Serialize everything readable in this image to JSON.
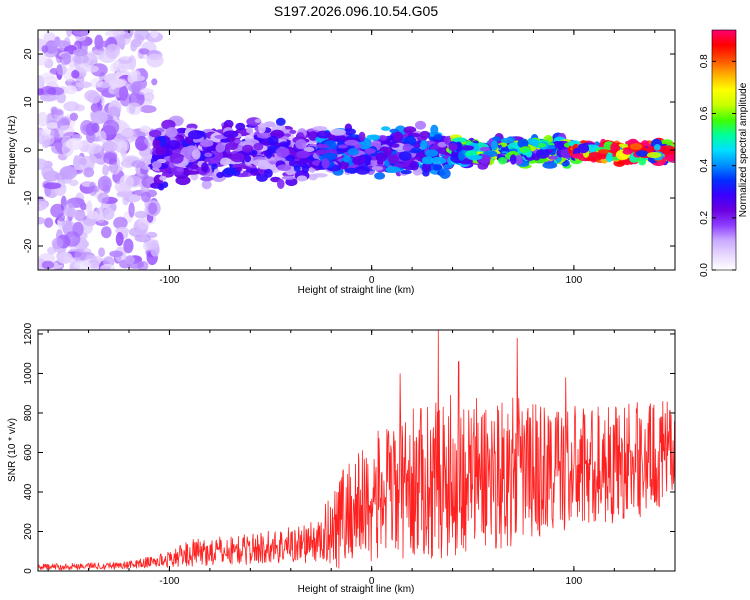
{
  "title": "S197.2026.096.10.54.G05",
  "chart_data": [
    {
      "type": "heatmap",
      "name": "spectrogram",
      "xlabel": "Height of straight line (km)",
      "ylabel": "Frequency (Hz)",
      "xlim": [
        -165,
        150
      ],
      "ylim": [
        -25,
        25
      ],
      "xticks": [
        -100,
        0,
        100
      ],
      "yticks": [
        -20,
        -10,
        0,
        10,
        20
      ],
      "colorbar": {
        "label": "Normalized spectral amplitude",
        "range": [
          0.0,
          0.92
        ],
        "ticks": [
          0.0,
          0.2,
          0.4,
          0.6,
          0.8
        ],
        "colors": [
          "#ffffff",
          "#e8d8ff",
          "#c9a8ff",
          "#8c3cff",
          "#6a00e0",
          "#3a00ff",
          "#0030ff",
          "#0090ff",
          "#00e0ff",
          "#00ff9a",
          "#40ff00",
          "#c8ff00",
          "#ffff00",
          "#ffb000",
          "#ff5000",
          "#ff0000",
          "#ff0070"
        ]
      },
      "regions": [
        {
          "x": [
            -165,
            -107
          ],
          "f": [
            -25,
            25
          ],
          "amp": 0.12,
          "desc": "noise"
        },
        {
          "x": [
            -107,
            -25
          ],
          "f": [
            -7,
            6
          ],
          "amp": 0.22
        },
        {
          "x": [
            -25,
            40
          ],
          "f": [
            -5,
            4
          ],
          "amp": 0.3
        },
        {
          "x": [
            40,
            100
          ],
          "f": [
            -3,
            2.5
          ],
          "amp": 0.45
        },
        {
          "x": [
            100,
            150
          ],
          "f": [
            -2.5,
            1.5
          ],
          "amp": 0.75
        }
      ]
    },
    {
      "type": "line",
      "name": "snr",
      "xlabel": "Height of straight line (km)",
      "ylabel": "SNR (10 * v/v)",
      "xlim": [
        -165,
        150
      ],
      "ylim": [
        0,
        1220
      ],
      "xticks": [
        -100,
        0,
        100
      ],
      "yticks": [
        0,
        200,
        400,
        600,
        800,
        1000,
        1200
      ],
      "color": "#ff2020",
      "envelope": [
        {
          "x": -165,
          "base": 20,
          "spread": 15
        },
        {
          "x": -120,
          "base": 30,
          "spread": 20
        },
        {
          "x": -100,
          "base": 60,
          "spread": 40
        },
        {
          "x": -90,
          "base": 90,
          "spread": 70
        },
        {
          "x": -60,
          "base": 110,
          "spread": 80
        },
        {
          "x": -25,
          "base": 150,
          "spread": 110
        },
        {
          "x": -18,
          "base": 260,
          "spread": 250
        },
        {
          "x": 0,
          "base": 360,
          "spread": 330
        },
        {
          "x": 20,
          "base": 440,
          "spread": 380
        },
        {
          "x": 40,
          "base": 480,
          "spread": 420
        },
        {
          "x": 70,
          "base": 500,
          "spread": 380
        },
        {
          "x": 100,
          "base": 520,
          "spread": 320
        },
        {
          "x": 130,
          "base": 560,
          "spread": 300
        },
        {
          "x": 150,
          "base": 600,
          "spread": 260
        }
      ],
      "peaks": [
        {
          "x": 33,
          "y": 1220
        },
        {
          "x": 72,
          "y": 1180
        },
        {
          "x": 14,
          "y": 1000
        },
        {
          "x": 43,
          "y": 1060
        },
        {
          "x": 96,
          "y": 980
        }
      ]
    }
  ]
}
